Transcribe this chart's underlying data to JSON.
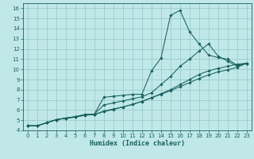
{
  "xlabel": "Humidex (Indice chaleur)",
  "xlim": [
    -0.5,
    23.5
  ],
  "ylim": [
    4,
    16.5
  ],
  "xticks": [
    0,
    1,
    2,
    3,
    4,
    5,
    6,
    7,
    8,
    9,
    10,
    11,
    12,
    13,
    14,
    15,
    16,
    17,
    18,
    19,
    20,
    21,
    22,
    23
  ],
  "yticks": [
    4,
    5,
    6,
    7,
    8,
    9,
    10,
    11,
    12,
    13,
    14,
    15,
    16
  ],
  "bg_color": "#c0e8e8",
  "grid_color": "#98cccc",
  "line_color": "#1a6060",
  "series": [
    {
      "x": [
        0,
        1,
        2,
        3,
        4,
        5,
        6,
        7,
        8,
        9,
        10,
        11,
        12,
        13,
        14,
        15,
        16,
        17,
        18,
        19,
        20,
        21,
        22,
        23
      ],
      "y": [
        4.45,
        4.45,
        4.75,
        5.05,
        5.2,
        5.35,
        5.55,
        5.6,
        7.25,
        7.35,
        7.45,
        7.55,
        7.55,
        9.85,
        11.1,
        15.3,
        15.8,
        13.7,
        12.5,
        11.4,
        11.15,
        11.0,
        10.4,
        10.6
      ]
    },
    {
      "x": [
        0,
        1,
        2,
        3,
        4,
        5,
        6,
        7,
        8,
        9,
        10,
        11,
        12,
        13,
        14,
        15,
        16,
        17,
        18,
        19,
        20,
        21,
        22,
        23
      ],
      "y": [
        4.45,
        4.45,
        4.75,
        5.05,
        5.2,
        5.35,
        5.55,
        5.6,
        6.5,
        6.7,
        6.9,
        7.1,
        7.3,
        7.7,
        8.5,
        9.3,
        10.3,
        11.0,
        11.8,
        12.5,
        11.3,
        10.8,
        10.3,
        10.6
      ]
    },
    {
      "x": [
        0,
        1,
        2,
        3,
        4,
        5,
        6,
        7,
        8,
        9,
        10,
        11,
        12,
        13,
        14,
        15,
        16,
        17,
        18,
        19,
        20,
        21,
        22,
        23
      ],
      "y": [
        4.45,
        4.45,
        4.75,
        5.05,
        5.2,
        5.3,
        5.5,
        5.55,
        5.9,
        6.1,
        6.3,
        6.55,
        6.85,
        7.2,
        7.6,
        8.0,
        8.5,
        9.0,
        9.5,
        9.85,
        10.1,
        10.3,
        10.5,
        10.6
      ]
    },
    {
      "x": [
        0,
        1,
        2,
        3,
        4,
        5,
        6,
        7,
        8,
        9,
        10,
        11,
        12,
        13,
        14,
        15,
        16,
        17,
        18,
        19,
        20,
        21,
        22,
        23
      ],
      "y": [
        4.45,
        4.45,
        4.75,
        5.05,
        5.2,
        5.3,
        5.5,
        5.55,
        5.85,
        6.05,
        6.3,
        6.55,
        6.85,
        7.2,
        7.55,
        7.9,
        8.3,
        8.7,
        9.1,
        9.45,
        9.75,
        9.95,
        10.2,
        10.6
      ]
    }
  ]
}
